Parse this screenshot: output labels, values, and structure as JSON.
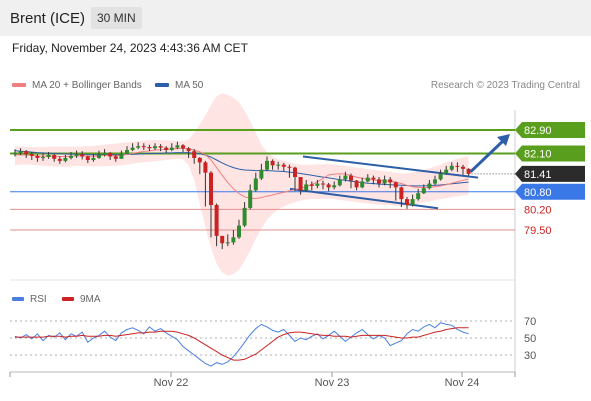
{
  "header": {
    "instrument": "Brent (ICE)",
    "interval": "30 MIN"
  },
  "timestamp": "Friday, November 24, 2023 4:43:36 AM CET",
  "legend": {
    "ma20_label": "MA 20 + Bollinger Bands",
    "ma50_label": "MA 50",
    "copyright": "Research © 2023 Trading Central"
  },
  "rsi_legend": {
    "rsi_label": "RSI",
    "ma_label": "9MA"
  },
  "colors": {
    "ma20": "#f08080",
    "ma50": "#2d5fa8",
    "resistance": "#5a9e1e",
    "support": "#e39090",
    "pivot": "#3b78e7",
    "current": "#2b2b2b",
    "arrow": "#2d5fa8",
    "up": "#2e8b2e",
    "down": "#cc2222",
    "bollinger": "#ffc4c4",
    "rsi": "#4a7fe0",
    "rsi_ma": "#cc2222"
  },
  "chart_data": [
    {
      "type": "candlestick",
      "title": "",
      "x_ticks": [
        "Nov 22",
        "Nov 23",
        "Nov 24"
      ],
      "levels": [
        {
          "value": 82.9,
          "label": "82.90",
          "kind": "resistance"
        },
        {
          "value": 82.1,
          "label": "82.10",
          "kind": "resistance"
        },
        {
          "value": 81.41,
          "label": "81.41",
          "kind": "current"
        },
        {
          "value": 80.8,
          "label": "80.80",
          "kind": "pivot"
        },
        {
          "value": 80.2,
          "label": "80.20",
          "kind": "support"
        },
        {
          "value": 79.5,
          "label": "79.50",
          "kind": "support"
        }
      ],
      "channel": {
        "upper": [
          [
            82.0,
            80
          ],
          [
            81.28,
            133
          ]
        ],
        "lower": [
          [
            80.9,
            80
          ],
          [
            80.24,
            130
          ]
        ]
      },
      "forecast": {
        "from": 81.41,
        "to": 82.9
      },
      "series": [
        {
          "name": "MA 20 + Bollinger Bands",
          "kind": "ma20"
        },
        {
          "name": "MA 50",
          "kind": "ma50"
        }
      ],
      "close": [
        82.12,
        82.18,
        82.08,
        82.02,
        81.95,
        81.98,
        82.05,
        81.92,
        81.85,
        81.95,
        82.02,
        82.08,
        82.0,
        81.88,
        81.95,
        82.05,
        82.12,
        82.0,
        81.92,
        82.08,
        82.22,
        82.3,
        82.35,
        82.32,
        82.28,
        82.35,
        82.3,
        82.22,
        82.3,
        82.38,
        82.28,
        82.18,
        81.95,
        81.8,
        81.45,
        80.35,
        79.3,
        79.05,
        79.08,
        79.25,
        79.65,
        80.25,
        80.85,
        81.25,
        81.55,
        81.85,
        81.7,
        81.72,
        81.65,
        81.62,
        81.3,
        80.85,
        81.05,
        81.0,
        81.08,
        81.05,
        80.95,
        81.02,
        81.22,
        81.35,
        81.18,
        80.95,
        81.15,
        81.28,
        81.22,
        81.08,
        81.22,
        81.12,
        80.95,
        80.55,
        80.35,
        80.55,
        80.75,
        80.92,
        81.08,
        81.22,
        81.42,
        81.55,
        81.68,
        81.65,
        81.58,
        81.41
      ],
      "high": [
        82.25,
        82.28,
        82.22,
        82.15,
        82.08,
        82.1,
        82.15,
        82.08,
        82.0,
        82.05,
        82.15,
        82.2,
        82.18,
        82.02,
        82.08,
        82.2,
        82.25,
        82.15,
        82.05,
        82.2,
        82.35,
        82.45,
        82.48,
        82.45,
        82.4,
        82.45,
        82.42,
        82.35,
        82.45,
        82.5,
        82.42,
        82.32,
        82.25,
        81.98,
        81.85,
        81.5,
        80.4,
        79.3,
        79.35,
        79.5,
        79.85,
        80.45,
        81.05,
        81.45,
        81.75,
        82.0,
        81.9,
        81.82,
        81.78,
        81.72,
        81.65,
        81.3,
        81.2,
        81.15,
        81.2,
        81.18,
        81.1,
        81.15,
        81.35,
        81.48,
        81.42,
        81.2,
        81.28,
        81.4,
        81.35,
        81.3,
        81.35,
        81.3,
        81.15,
        80.98,
        80.62,
        80.7,
        80.9,
        81.05,
        81.2,
        81.35,
        81.55,
        81.68,
        81.8,
        81.8,
        81.72,
        81.6
      ],
      "low": [
        82.0,
        82.05,
        81.95,
        81.88,
        81.82,
        81.85,
        81.92,
        81.82,
        81.75,
        81.8,
        81.9,
        81.95,
        81.9,
        81.78,
        81.82,
        81.92,
        82.0,
        81.88,
        81.82,
        81.95,
        82.1,
        82.18,
        82.25,
        82.22,
        82.18,
        82.22,
        82.18,
        82.12,
        82.18,
        82.25,
        82.15,
        81.95,
        81.75,
        81.4,
        80.3,
        79.25,
        78.95,
        78.85,
        78.95,
        79.0,
        79.2,
        79.6,
        80.2,
        80.8,
        81.2,
        81.5,
        81.55,
        81.55,
        81.5,
        81.28,
        80.82,
        80.7,
        80.8,
        80.85,
        80.92,
        80.88,
        80.82,
        80.88,
        80.98,
        81.15,
        80.92,
        80.85,
        80.92,
        81.12,
        81.05,
        80.95,
        81.02,
        80.92,
        80.5,
        80.28,
        80.22,
        80.3,
        80.5,
        80.72,
        80.88,
        81.02,
        81.18,
        81.38,
        81.5,
        81.48,
        81.38,
        81.35
      ],
      "ma20": [
        82.05,
        82.06,
        82.05,
        82.04,
        82.02,
        82.01,
        82.02,
        82.01,
        82.0,
        82.0,
        82.01,
        82.02,
        82.02,
        82.01,
        82.01,
        82.02,
        82.04,
        82.03,
        82.02,
        82.04,
        82.07,
        82.1,
        82.14,
        82.17,
        82.19,
        82.22,
        82.23,
        82.24,
        82.25,
        82.27,
        82.27,
        82.26,
        82.22,
        82.16,
        82.06,
        81.88,
        81.62,
        81.36,
        81.11,
        80.9,
        80.74,
        80.63,
        80.58,
        80.57,
        80.6,
        80.65,
        80.69,
        80.74,
        80.78,
        80.83,
        80.87,
        80.92,
        80.97,
        81.05,
        81.14,
        81.25,
        81.37,
        81.4,
        81.41,
        81.4,
        81.35,
        81.3,
        81.26,
        81.23,
        81.2,
        81.18,
        81.17,
        81.16,
        81.13,
        81.08,
        81.02,
        80.97,
        80.95,
        80.94,
        80.95,
        80.97,
        81.0,
        81.04,
        81.09,
        81.14,
        81.19,
        81.23
      ],
      "ma50": [
        82.2,
        82.18,
        82.17,
        82.15,
        82.13,
        82.12,
        82.11,
        82.1,
        82.09,
        82.08,
        82.08,
        82.07,
        82.07,
        82.06,
        82.06,
        82.06,
        82.06,
        82.06,
        82.06,
        82.06,
        82.07,
        82.07,
        82.08,
        82.09,
        82.1,
        82.1,
        82.11,
        82.12,
        82.12,
        82.13,
        82.13,
        82.13,
        82.11,
        82.09,
        82.05,
        81.98,
        81.88,
        81.78,
        81.69,
        81.62,
        81.57,
        81.54,
        81.53,
        81.52,
        81.52,
        81.52,
        81.51,
        81.5,
        81.49,
        81.47,
        81.45,
        81.42,
        81.39,
        81.36,
        81.33,
        81.3,
        81.27,
        81.24,
        81.21,
        81.19,
        81.16,
        81.14,
        81.11,
        81.09,
        81.08,
        81.06,
        81.05,
        81.04,
        81.03,
        81.02,
        81.01,
        81.0,
        81.0,
        81.0,
        81.01,
        81.02,
        81.03,
        81.05,
        81.07,
        81.09,
        81.11,
        81.13
      ],
      "bb_upper": [
        82.35,
        82.34,
        82.33,
        82.32,
        82.32,
        82.32,
        82.33,
        82.33,
        82.33,
        82.33,
        82.33,
        82.34,
        82.35,
        82.35,
        82.36,
        82.38,
        82.4,
        82.42,
        82.44,
        82.46,
        82.48,
        82.5,
        82.52,
        82.54,
        82.55,
        82.56,
        82.56,
        82.55,
        82.54,
        82.52,
        82.52,
        82.58,
        82.8,
        83.1,
        83.4,
        83.75,
        84.05,
        84.15,
        84.1,
        84.0,
        83.85,
        83.55,
        83.2,
        82.8,
        82.4,
        82.15,
        82.0,
        81.9,
        81.85,
        81.8,
        81.75,
        81.72,
        81.72,
        81.72,
        81.73,
        81.74,
        81.74,
        81.73,
        81.7,
        81.68,
        81.65,
        81.62,
        81.6,
        81.57,
        81.55,
        81.52,
        81.5,
        81.48,
        81.45,
        81.42,
        81.42,
        81.45,
        81.5,
        81.55,
        81.6,
        81.66,
        81.72,
        81.8,
        81.86,
        81.92,
        81.97,
        82.0
      ],
      "bb_lower": [
        81.7,
        81.72,
        81.73,
        81.72,
        81.7,
        81.68,
        81.67,
        81.66,
        81.65,
        81.65,
        81.66,
        81.68,
        81.68,
        81.67,
        81.66,
        81.66,
        81.67,
        81.68,
        81.68,
        81.7,
        81.72,
        81.75,
        81.78,
        81.8,
        81.82,
        81.84,
        81.86,
        81.88,
        81.9,
        81.92,
        81.9,
        81.7,
        81.2,
        80.4,
        79.6,
        78.9,
        78.35,
        78.05,
        77.95,
        78.0,
        78.15,
        78.45,
        78.8,
        79.2,
        79.55,
        79.85,
        80.05,
        80.2,
        80.3,
        80.38,
        80.45,
        80.5,
        80.53,
        80.55,
        80.55,
        80.56,
        80.56,
        80.55,
        80.52,
        80.5,
        80.48,
        80.45,
        80.42,
        80.4,
        80.38,
        80.36,
        80.35,
        80.34,
        80.33,
        80.32,
        80.32,
        80.35,
        80.4,
        80.44,
        80.48,
        80.52,
        80.55,
        80.58,
        80.62,
        80.65,
        80.68,
        80.7
      ]
    },
    {
      "type": "line",
      "title": "",
      "ylim": [
        10,
        90
      ],
      "y_ticks": [
        70,
        50,
        30
      ],
      "series": [
        {
          "name": "RSI",
          "kind": "rsi",
          "values": [
            52,
            50,
            54,
            49,
            55,
            47,
            53,
            51,
            56,
            48,
            55,
            52,
            57,
            45,
            50,
            53,
            58,
            51,
            47,
            56,
            60,
            62,
            59,
            55,
            63,
            58,
            61,
            56,
            52,
            48,
            40,
            35,
            30,
            25,
            20,
            17,
            21,
            19,
            22,
            28,
            36,
            45,
            54,
            61,
            66,
            63,
            59,
            57,
            60,
            53,
            46,
            50,
            48,
            52,
            55,
            49,
            53,
            58,
            52,
            46,
            51,
            56,
            60,
            54,
            49,
            53,
            50,
            41,
            44,
            47,
            55,
            60,
            58,
            63,
            66,
            62,
            68,
            66,
            65,
            60,
            57,
            55
          ]
        },
        {
          "name": "9MA",
          "kind": "rsi_ma",
          "values": [
            51,
            51,
            51,
            51,
            51,
            51,
            52,
            52,
            52,
            51,
            52,
            52,
            53,
            52,
            52,
            52,
            53,
            53,
            52,
            53,
            54,
            55,
            56,
            56,
            57,
            57,
            58,
            58,
            58,
            57,
            55,
            53,
            50,
            46,
            42,
            38,
            34,
            30,
            27,
            24,
            24,
            25,
            28,
            31,
            36,
            41,
            46,
            51,
            54,
            56,
            57,
            57,
            56,
            55,
            54,
            53,
            53,
            52,
            52,
            52,
            51,
            52,
            53,
            53,
            53,
            53,
            53,
            52,
            51,
            50,
            50,
            51,
            51,
            53,
            55,
            57,
            58,
            60,
            61,
            62,
            62,
            62
          ]
        }
      ]
    }
  ]
}
